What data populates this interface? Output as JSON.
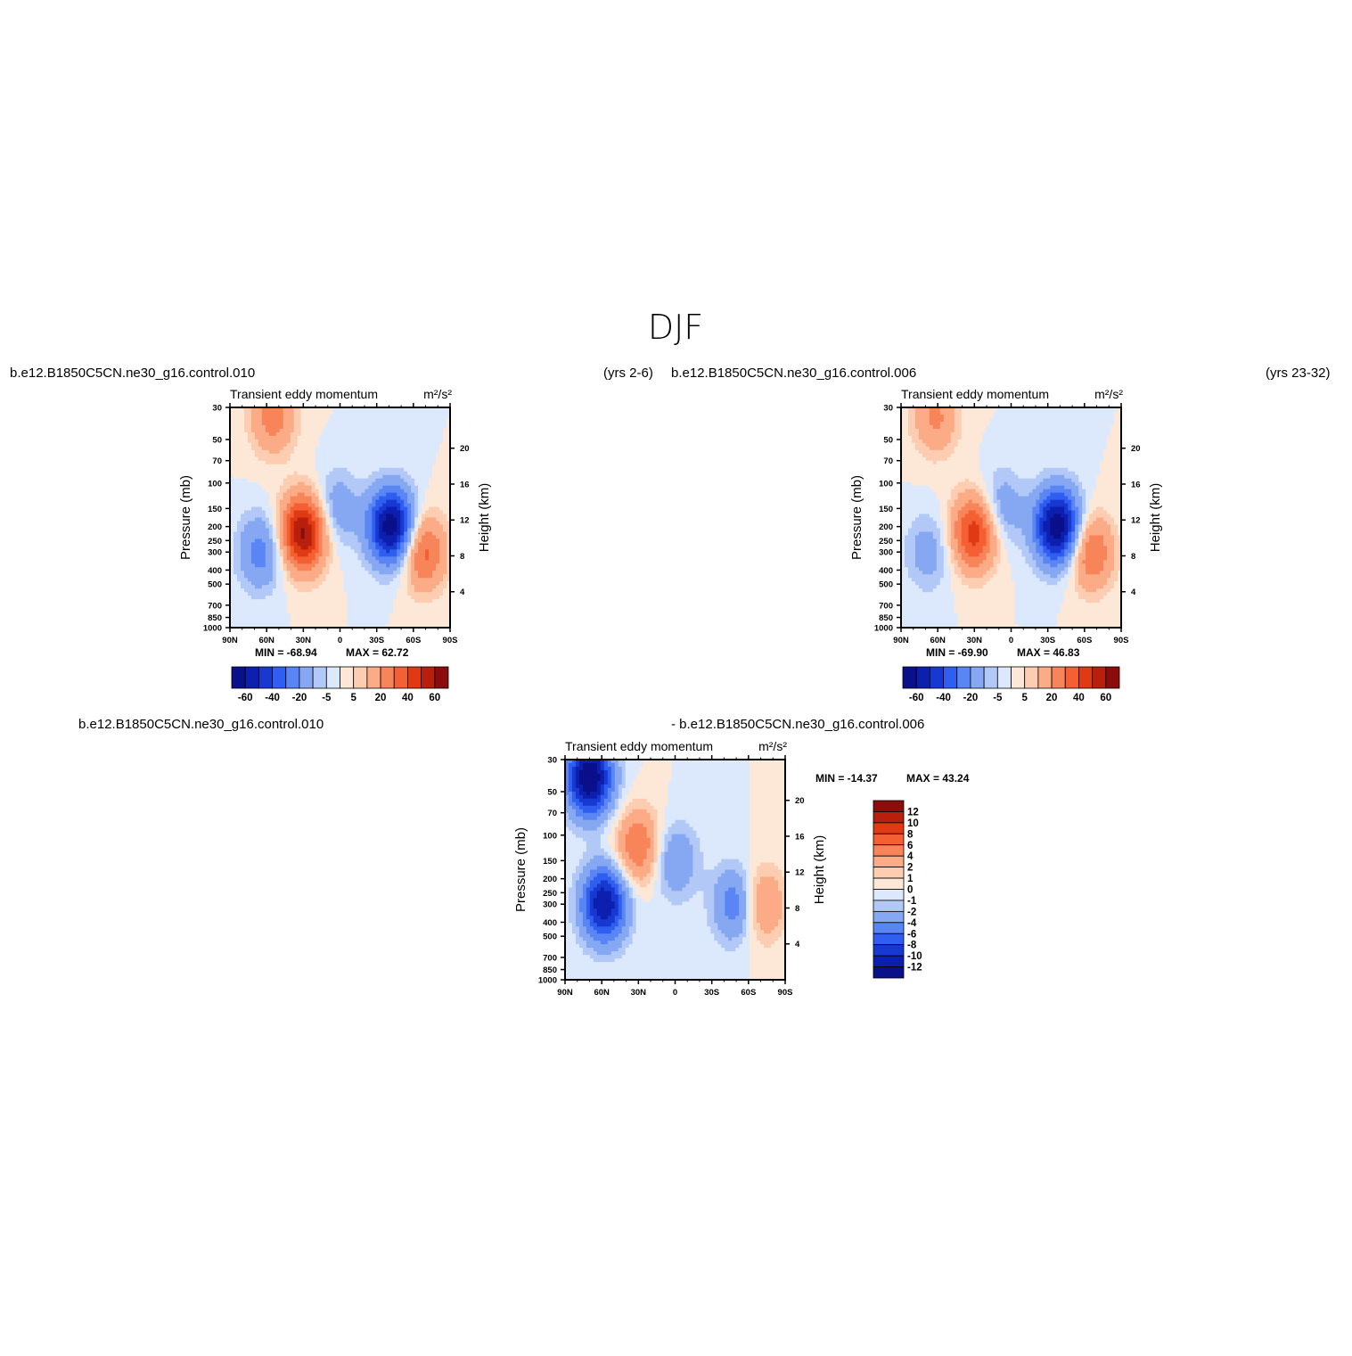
{
  "page_title": "DJF",
  "captions": {
    "top_left_case": "b.e12.B1850C5CN.ne30_g16.control.010",
    "top_left_years": "(yrs 2-6)",
    "top_right_case": "b.e12.B1850C5CN.ne30_g16.control.006",
    "top_right_years": "(yrs 23-32)",
    "diff_left": "b.e12.B1850C5CN.ne30_g16.control.010",
    "diff_right": "- b.e12.B1850C5CN.ne30_g16.control.006"
  },
  "colors": {
    "blues": [
      "#0a0f8a",
      "#0d1fae",
      "#1838d2",
      "#2f5ef0",
      "#5a86f5",
      "#86a8f3",
      "#b2c9f8",
      "#dce9fc"
    ],
    "reds": [
      "#fde8d8",
      "#fccdb0",
      "#fbab86",
      "#f8855a",
      "#f45f33",
      "#df3a13",
      "#b81f0c",
      "#8a0c0c"
    ]
  },
  "chart_data": [
    {
      "type": "heatmap",
      "title": "Transient eddy momentum",
      "units": "m²/s²",
      "xlabel": "",
      "ylabel": "Pressure (mb)",
      "y2label": "Height (km)",
      "x_ticks": [
        "90N",
        "60N",
        "30N",
        "0",
        "30S",
        "60S",
        "90S"
      ],
      "y_ticks": [
        30,
        50,
        70,
        100,
        150,
        200,
        250,
        300,
        400,
        500,
        700,
        850,
        1000
      ],
      "y2_ticks": [
        4,
        8,
        12,
        16,
        20
      ],
      "ylog": true,
      "xlim": [
        90,
        -90
      ],
      "ylim": [
        1000,
        30
      ],
      "min_label": "MIN = -68.94",
      "max_label": "MAX = 62.72",
      "colorbar_levels": [
        -60,
        -50,
        -40,
        -30,
        -20,
        -10,
        -5,
        0,
        5,
        10,
        20,
        30,
        40,
        50,
        60
      ],
      "colorbar_labels": [
        "-60",
        "-40",
        "-20",
        "-5",
        "5",
        "20",
        "40",
        "60"
      ],
      "features": [
        {
          "lat": -42,
          "p": 200,
          "value": -68.9
        },
        {
          "lat": 30,
          "p": 220,
          "value": 62.7
        },
        {
          "lat": 55,
          "p": 35,
          "value": 25
        },
        {
          "lat": -68,
          "p": 300,
          "value": 35
        },
        {
          "lat": 65,
          "p": 300,
          "value": -25
        },
        {
          "lat": 3,
          "p": 150,
          "value": -18
        }
      ]
    },
    {
      "type": "heatmap",
      "title": "Transient eddy momentum",
      "units": "m²/s²",
      "xlabel": "",
      "ylabel": "Pressure (mb)",
      "y2label": "Height (km)",
      "x_ticks": [
        "90N",
        "60N",
        "30N",
        "0",
        "30S",
        "60S",
        "90S"
      ],
      "y_ticks": [
        30,
        50,
        70,
        100,
        150,
        200,
        250,
        300,
        400,
        500,
        700,
        850,
        1000
      ],
      "y2_ticks": [
        4,
        8,
        12,
        16,
        20
      ],
      "ylog": true,
      "xlim": [
        90,
        -90
      ],
      "ylim": [
        1000,
        30
      ],
      "min_label": "MIN = -69.90",
      "max_label": "MAX = 46.83",
      "colorbar_levels": [
        -60,
        -50,
        -40,
        -30,
        -20,
        -10,
        -5,
        0,
        5,
        10,
        20,
        30,
        40,
        50,
        60
      ],
      "colorbar_labels": [
        "-60",
        "-40",
        "-20",
        "-5",
        "5",
        "20",
        "40",
        "60"
      ],
      "features": [
        {
          "lat": -38,
          "p": 200,
          "value": -69.9
        },
        {
          "lat": 30,
          "p": 220,
          "value": 46.8
        },
        {
          "lat": 62,
          "p": 35,
          "value": 22
        },
        {
          "lat": -65,
          "p": 300,
          "value": 32
        },
        {
          "lat": 68,
          "p": 300,
          "value": -15
        },
        {
          "lat": 8,
          "p": 150,
          "value": -18
        }
      ]
    },
    {
      "type": "heatmap",
      "title": "Transient eddy momentum",
      "units": "m²/s²",
      "xlabel": "",
      "ylabel": "Pressure (mb)",
      "y2label": "Height (km)",
      "x_ticks": [
        "90N",
        "60N",
        "30N",
        "0",
        "30S",
        "60S",
        "90S"
      ],
      "y_ticks": [
        30,
        50,
        70,
        100,
        150,
        200,
        250,
        300,
        400,
        500,
        700,
        850,
        1000
      ],
      "y2_ticks": [
        4,
        8,
        12,
        16,
        20
      ],
      "ylog": true,
      "xlim": [
        90,
        -90
      ],
      "ylim": [
        1000,
        30
      ],
      "min_label": "MIN = -14.37",
      "max_label": "MAX = 43.24",
      "colorbar_levels": [
        -12,
        -10,
        -8,
        -6,
        -4,
        -2,
        -1,
        0,
        1,
        2,
        4,
        6,
        8,
        10,
        12
      ],
      "colorbar_labels": [
        "12",
        "10",
        "8",
        "6",
        "4",
        "2",
        "1",
        "0",
        "-1",
        "-2",
        "-4",
        "-6",
        "-8",
        "-10",
        "-12"
      ],
      "features": [
        {
          "lat": 70,
          "p": 40,
          "value": -14.4
        },
        {
          "lat": 58,
          "p": 300,
          "value": -12
        },
        {
          "lat": 30,
          "p": 120,
          "value": 6
        },
        {
          "lat": -50,
          "p": 300,
          "value": -6
        },
        {
          "lat": 0,
          "p": 150,
          "value": -4
        },
        {
          "lat": -70,
          "p": 300,
          "value": 5
        }
      ]
    }
  ]
}
